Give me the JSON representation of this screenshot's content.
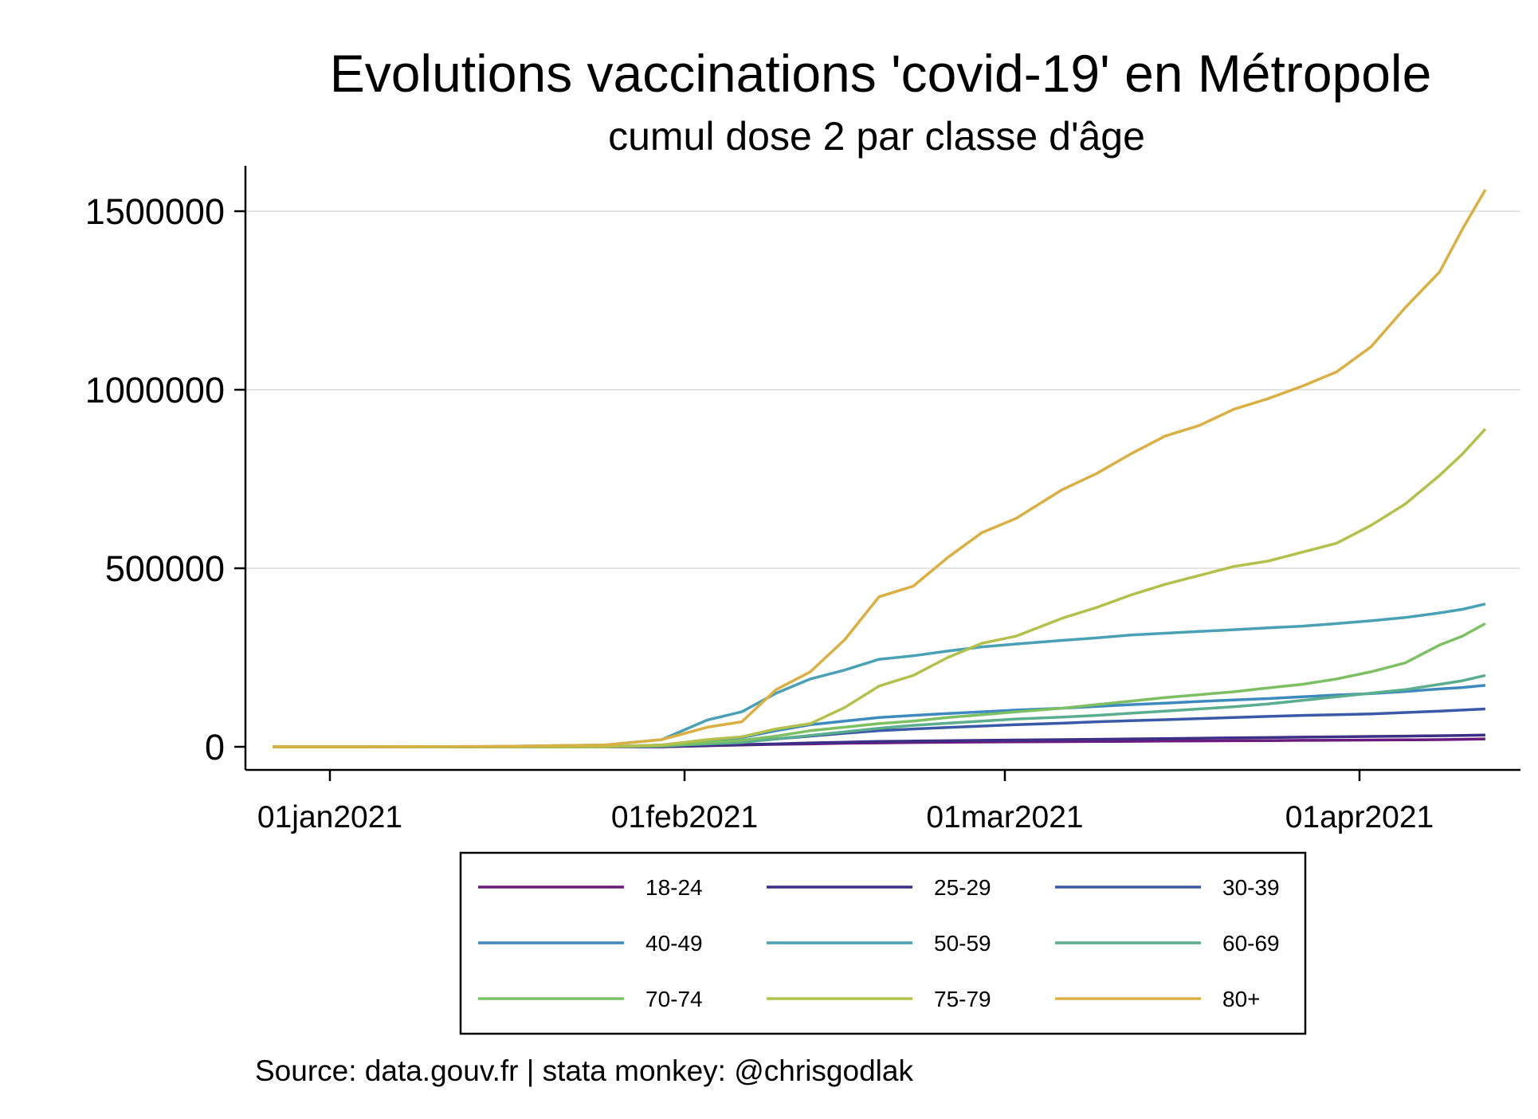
{
  "chart_data": {
    "type": "line",
    "title": "Evolutions vaccinations 'covid-19' en Métropole",
    "subtitle": "cumul dose 2 par classe d'âge",
    "xlabel": "",
    "ylabel": "",
    "x_ticks": [
      "01jan2021",
      "01feb2021",
      "01mar2021",
      "01apr2021"
    ],
    "y_ticks": [
      "0",
      "500000",
      "1000000",
      "1500000"
    ],
    "ylim": [
      0,
      1600000
    ],
    "grid": "horizontal",
    "legend_position": "bottom",
    "source": "Source: data.gouv.fr | stata monkey: @chrisgodlak",
    "x": [
      "2020-12-27",
      "2021-01-05",
      "2021-01-15",
      "2021-01-25",
      "2021-01-30",
      "2021-02-03",
      "2021-02-06",
      "2021-02-09",
      "2021-02-12",
      "2021-02-15",
      "2021-02-18",
      "2021-02-21",
      "2021-02-24",
      "2021-02-27",
      "2021-03-02",
      "2021-03-06",
      "2021-03-09",
      "2021-03-12",
      "2021-03-15",
      "2021-03-18",
      "2021-03-21",
      "2021-03-24",
      "2021-03-27",
      "2021-03-30",
      "2021-04-02",
      "2021-04-05",
      "2021-04-08",
      "2021-04-10",
      "2021-04-12"
    ],
    "series": [
      {
        "name": "18-24",
        "color": "#6a1b7d",
        "values": [
          0,
          0,
          0,
          0,
          0,
          3000,
          5000,
          7000,
          8000,
          10000,
          11000,
          12000,
          13000,
          13500,
          14000,
          14500,
          15000,
          15500,
          16000,
          16500,
          17000,
          17500,
          18000,
          18500,
          19000,
          19500,
          20000,
          21000,
          22000
        ]
      },
      {
        "name": "25-29",
        "color": "#3b2f86",
        "values": [
          0,
          0,
          0,
          0,
          0,
          4000,
          6000,
          8000,
          11000,
          13000,
          15000,
          16000,
          17000,
          18000,
          19000,
          20000,
          21000,
          22000,
          23000,
          24000,
          25000,
          26000,
          27000,
          28000,
          29000,
          30000,
          31000,
          32000,
          33000
        ]
      },
      {
        "name": "30-39",
        "color": "#3a59a6",
        "values": [
          0,
          0,
          0,
          0,
          3000,
          10000,
          15000,
          22000,
          30000,
          38000,
          45000,
          50000,
          54000,
          58000,
          62000,
          66000,
          70000,
          73000,
          76000,
          79000,
          82000,
          85000,
          88000,
          90000,
          92000,
          96000,
          100000,
          103000,
          106000
        ]
      },
      {
        "name": "40-49",
        "color": "#3e89bd",
        "values": [
          0,
          0,
          0,
          0,
          5000,
          18000,
          26000,
          45000,
          62000,
          72000,
          82000,
          88000,
          93000,
          98000,
          103000,
          108000,
          113000,
          118000,
          122000,
          127000,
          131000,
          135000,
          140000,
          145000,
          149000,
          155000,
          162000,
          166000,
          172000
        ]
      },
      {
        "name": "50-59",
        "color": "#4aa0b5",
        "values": [
          0,
          0,
          1000,
          5000,
          20000,
          75000,
          98000,
          150000,
          190000,
          215000,
          245000,
          255000,
          268000,
          280000,
          288000,
          298000,
          305000,
          313000,
          318000,
          323000,
          328000,
          333000,
          338000,
          345000,
          353000,
          362000,
          375000,
          385000,
          400000
        ]
      },
      {
        "name": "60-69",
        "color": "#5aad8d",
        "values": [
          0,
          0,
          0,
          0,
          2000,
          8000,
          12000,
          22000,
          32000,
          42000,
          52000,
          60000,
          66000,
          72000,
          78000,
          83000,
          88000,
          94000,
          100000,
          106000,
          112000,
          120000,
          130000,
          140000,
          150000,
          160000,
          175000,
          185000,
          200000
        ]
      },
      {
        "name": "70-74",
        "color": "#7dc064",
        "values": [
          0,
          0,
          0,
          0,
          3000,
          12000,
          18000,
          30000,
          45000,
          55000,
          65000,
          72000,
          82000,
          90000,
          98000,
          108000,
          118000,
          128000,
          138000,
          146000,
          154000,
          165000,
          175000,
          190000,
          210000,
          235000,
          285000,
          310000,
          345000
        ]
      },
      {
        "name": "75-79",
        "color": "#b2c14b",
        "values": [
          0,
          0,
          0,
          0,
          5000,
          20000,
          28000,
          50000,
          65000,
          110000,
          170000,
          200000,
          250000,
          290000,
          310000,
          360000,
          390000,
          425000,
          455000,
          480000,
          505000,
          520000,
          545000,
          570000,
          620000,
          680000,
          760000,
          820000,
          890000
        ]
      },
      {
        "name": "80+",
        "color": "#daaf43",
        "values": [
          0,
          0,
          1000,
          5000,
          20000,
          55000,
          70000,
          160000,
          210000,
          300000,
          420000,
          450000,
          530000,
          600000,
          640000,
          720000,
          765000,
          820000,
          870000,
          900000,
          945000,
          975000,
          1010000,
          1050000,
          1120000,
          1230000,
          1330000,
          1450000,
          1560000
        ]
      }
    ]
  }
}
